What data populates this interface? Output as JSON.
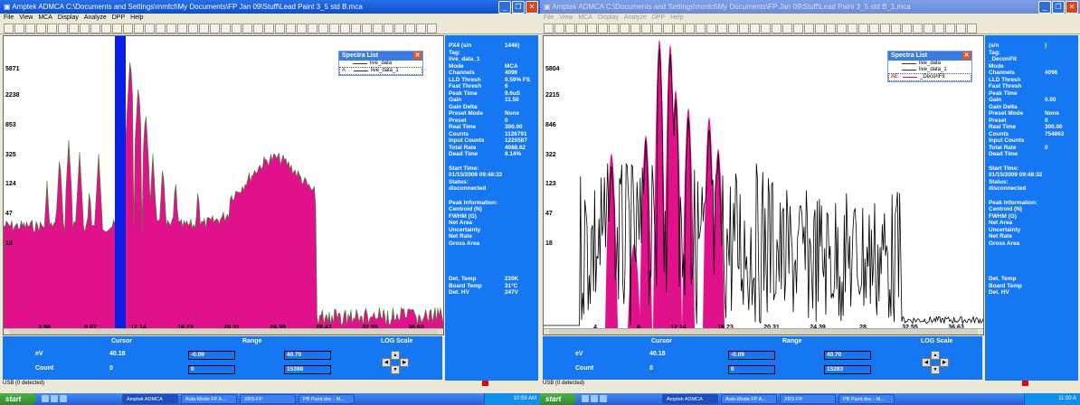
{
  "left": {
    "title": "Amptek ADMCA    C:\\Documents and Settings\\mmfct\\My Documents\\FP Jan 09\\Stuff\\Lead Paint 3_5 std B.mca",
    "menu": [
      "File",
      "View",
      "MCA",
      "Display",
      "Analyze",
      "DPP",
      "Help"
    ],
    "y_labels": [
      "5871",
      "2238",
      "853",
      "325",
      "124",
      "47",
      "18"
    ],
    "x_labels": [
      "3.98",
      "8.07",
      "12.14",
      "16.23",
      "20.31",
      "24.39",
      "28.47",
      "32.55",
      "36.63"
    ],
    "spectra": {
      "title": "Spectra List",
      "items": [
        {
          "tag": "",
          "name": "live_data"
        },
        {
          "tag": "A",
          "name": "live_data_1"
        }
      ]
    },
    "params": [
      {
        "k": "PX4 (s/n",
        "v": "1446)"
      },
      {
        "k": "Tag:",
        "v": ""
      },
      {
        "k": "live_data_1",
        "v": ""
      },
      {
        "k": "Mode",
        "v": "MCA"
      },
      {
        "k": "Channels",
        "v": "4096"
      },
      {
        "k": "LLD Thresh",
        "v": "0.59% FS"
      },
      {
        "k": "Fast Thresh",
        "v": "6"
      },
      {
        "k": "Peak Time",
        "v": "9.6uS"
      },
      {
        "k": "Gain",
        "v": "11.50"
      },
      {
        "k": "Gain Delta",
        "v": ""
      },
      {
        "k": "Preset Mode",
        "v": "None"
      },
      {
        "k": "Preset",
        "v": "0"
      },
      {
        "k": "Real Time",
        "v": "300.00"
      },
      {
        "k": "Counts",
        "v": "1126791"
      },
      {
        "k": "Input Counts",
        "v": "1226587"
      },
      {
        "k": "Total Rate",
        "v": "4088.62"
      },
      {
        "k": "Dead Time",
        "v": "8.14%"
      }
    ],
    "start_time": [
      "Start Time:",
      "01/15/2009 09:48:32",
      "Status:",
      "disconnected"
    ],
    "peak_info": [
      "Peak Information:",
      "Centroid (N)",
      "FWHM (G)",
      "Net Area",
      "Uncertainty",
      "Net Rate",
      "Gross Area"
    ],
    "det": [
      {
        "k": "Det. Temp",
        "v": "220K"
      },
      {
        "k": "Board Temp",
        "v": "31°C"
      },
      {
        "k": "Det. HV",
        "v": "247V"
      }
    ],
    "cursor": {
      "cursor_label": "Cursor",
      "range_label": "Range",
      "log_label": "LOG Scale",
      "ev_label": "eV",
      "count_label": "Count",
      "ev": "40.18",
      "count": "0",
      "r1": "-0.09",
      "r2": "0",
      "r3": "40.70",
      "r4": "15398"
    },
    "status": "USB (0 detected)"
  },
  "right": {
    "title": "Amptek ADMCA    C:\\Documents and Settings\\mmfct\\My Documents\\FP Jan 09\\Stuff\\Lead Paint 3_5 std B_1.mca",
    "menu": [
      "File",
      "View",
      "MCA",
      "Display",
      "Analyze",
      "DPP",
      "Help"
    ],
    "y_labels": [
      "5804",
      "2215",
      "846",
      "322",
      "123",
      "47",
      "18"
    ],
    "x_labels": [
      "4.",
      "8.",
      "12.14",
      "16.23",
      "20.31",
      "24.39",
      "28.",
      "32.55",
      "36.63"
    ],
    "spectra": {
      "title": "Spectra List",
      "items": [
        {
          "tag": "",
          "name": "live_data"
        },
        {
          "tag": "",
          "name": "live_data_1"
        },
        {
          "tag": "AE",
          "name": "_DeconFit"
        }
      ]
    },
    "params": [
      {
        "k": "(s/n",
        "v": ")"
      },
      {
        "k": "Tag:",
        "v": ""
      },
      {
        "k": "_DeconFit",
        "v": ""
      },
      {
        "k": "Mode",
        "v": ""
      },
      {
        "k": "Channels",
        "v": "4096"
      },
      {
        "k": "LLD Thresh",
        "v": ""
      },
      {
        "k": "Fast Thresh",
        "v": ""
      },
      {
        "k": "Peak Time",
        "v": ""
      },
      {
        "k": "Gain",
        "v": "0.00"
      },
      {
        "k": "Gain Delta",
        "v": ""
      },
      {
        "k": "Preset Mode",
        "v": "None"
      },
      {
        "k": "Preset",
        "v": "0"
      },
      {
        "k": "Real Time",
        "v": "300.00"
      },
      {
        "k": "Counts",
        "v": "754863"
      },
      {
        "k": "Input Counts",
        "v": ""
      },
      {
        "k": "Total Rate",
        "v": "0"
      },
      {
        "k": "Dead Time",
        "v": ""
      }
    ],
    "start_time": [
      "Start Time:",
      "01/15/2009 09:48:32",
      "Status:",
      "disconnected"
    ],
    "peak_info": [
      "Peak Information:",
      "Centroid (N)",
      "FWHM (G)",
      "Net Area",
      "Uncertainty",
      "Net Rate",
      "Gross Area"
    ],
    "det": [
      {
        "k": "Det. Temp",
        "v": ""
      },
      {
        "k": "Board Temp",
        "v": ""
      },
      {
        "k": "Det. HV",
        "v": ""
      }
    ],
    "cursor": {
      "cursor_label": "Cursor",
      "range_label": "Range",
      "log_label": "LOG Scale",
      "ev_label": "eV",
      "count_label": "Count",
      "ev": "40.18",
      "count": "0",
      "r1": "-0.09",
      "r2": "0",
      "r3": "40.70",
      "r4": "15283"
    },
    "status": "USB (0 detected)"
  },
  "taskbar": {
    "start": "start",
    "left_tasks": [
      "Amptek ADMCA",
      "Auto-Mode FP A...",
      "XRS-FP",
      "PB Paint.doc - M..."
    ],
    "right_tasks": [
      "Amptek ADMCA",
      "Auto-Mode FP A...",
      "XRS-FP",
      "PB Paint.doc - M..."
    ],
    "left_clock": "10:59 AM",
    "right_clock": "11:00 A"
  },
  "colors": {
    "spectrum_fill": "#e0118a",
    "roi_blue": "#0a1ee8",
    "panel_blue": "#1577f2",
    "titlebar": "#0a4fd0"
  }
}
